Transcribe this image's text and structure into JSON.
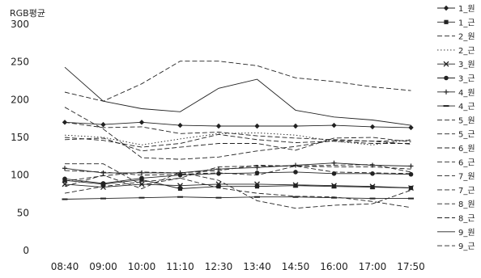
{
  "chart_data": {
    "type": "line",
    "title": "",
    "xlabel": "",
    "ylabel": "RGB평균",
    "ylim": [
      0,
      300
    ],
    "yticks": [
      0,
      50,
      100,
      150,
      200,
      250,
      300
    ],
    "grid": false,
    "legend_position": "right",
    "x": [
      "08:40",
      "09:00",
      "10:00",
      "11:10",
      "12:30",
      "13:40",
      "14:50",
      "16:00",
      "17:00",
      "17:50"
    ],
    "series": [
      {
        "name": "1_원",
        "marker": "diamond",
        "dash": "solid",
        "values": [
          170,
          167,
          170,
          166,
          165,
          165,
          165,
          166,
          164,
          163
        ]
      },
      {
        "name": "1_근",
        "marker": "square",
        "dash": "solid",
        "values": [
          93,
          88,
          94,
          82,
          85,
          85,
          86,
          85,
          84,
          83
        ]
      },
      {
        "name": "2_원",
        "marker": "none",
        "dash": "dash",
        "values": [
          210,
          198,
          221,
          251,
          251,
          245,
          229,
          224,
          217,
          212
        ]
      },
      {
        "name": "2_근",
        "marker": "none",
        "dash": "dot",
        "values": [
          153,
          150,
          140,
          148,
          155,
          156,
          153,
          145,
          140,
          147
        ]
      },
      {
        "name": "3_원",
        "marker": "x",
        "dash": "solid",
        "values": [
          88,
          84,
          88,
          86,
          88,
          88,
          87,
          86,
          85,
          83
        ]
      },
      {
        "name": "3_근",
        "marker": "circle",
        "dash": "solid",
        "values": [
          95,
          89,
          96,
          100,
          102,
          103,
          104,
          102,
          102,
          101
        ]
      },
      {
        "name": "4_원",
        "marker": "plus",
        "dash": "solid",
        "values": [
          109,
          103,
          103,
          103,
          108,
          110,
          113,
          116,
          113,
          112
        ]
      },
      {
        "name": "4_근",
        "marker": "dash",
        "dash": "solid",
        "values": [
          68,
          69,
          70,
          71,
          70,
          71,
          71,
          70,
          69,
          69
        ]
      },
      {
        "name": "5_원",
        "marker": "none",
        "dash": "dash",
        "values": [
          170,
          163,
          164,
          155,
          157,
          152,
          149,
          147,
          145,
          146
        ]
      },
      {
        "name": "5_근",
        "marker": "none",
        "dash": "dash",
        "values": [
          147,
          149,
          132,
          137,
          142,
          142,
          133,
          149,
          150,
          144
        ]
      },
      {
        "name": "6_원",
        "marker": "none",
        "dash": "dash",
        "values": [
          115,
          115,
          87,
          96,
          111,
          112,
          112,
          111,
          111,
          108
        ]
      },
      {
        "name": "6_근",
        "marker": "none",
        "dash": "dash",
        "values": [
          92,
          99,
          104,
          103,
          106,
          113,
          112,
          113,
          114,
          104
        ]
      },
      {
        "name": "7_원",
        "marker": "none",
        "dash": "dash",
        "values": [
          106,
          104,
          100,
          101,
          103,
          100,
          112,
          104,
          103,
          102
        ]
      },
      {
        "name": "7_근",
        "marker": "none",
        "dash": "dash",
        "values": [
          76,
          85,
          91,
          96,
          83,
          76,
          72,
          71,
          65,
          57
        ]
      },
      {
        "name": "8_원",
        "marker": "none",
        "dash": "dash",
        "values": [
          85,
          100,
          82,
          104,
          93,
          66,
          56,
          60,
          62,
          80
        ]
      },
      {
        "name": "8_근",
        "marker": "none",
        "dash": "dash",
        "values": [
          150,
          146,
          137,
          142,
          154,
          147,
          143,
          145,
          142,
          142
        ]
      },
      {
        "name": "9_원",
        "marker": "none",
        "dash": "solid",
        "values": [
          243,
          198,
          188,
          184,
          215,
          227,
          186,
          177,
          173,
          166
        ]
      },
      {
        "name": "9_근",
        "marker": "none",
        "dash": "dash",
        "values": [
          190,
          161,
          123,
          121,
          124,
          132,
          138,
          146,
          145,
          141
        ]
      }
    ]
  }
}
